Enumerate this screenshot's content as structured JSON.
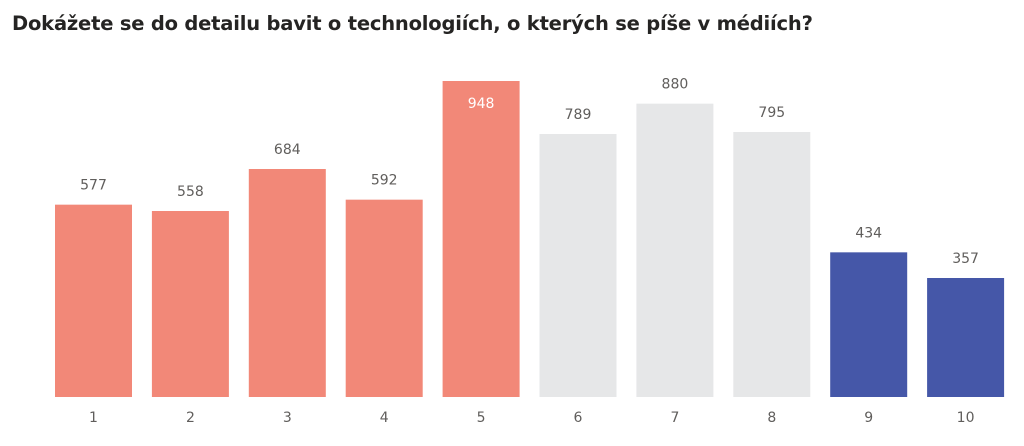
{
  "chart_data": {
    "type": "bar",
    "title": "Dokážete se do detailu bavit o technologiích, o kterých se píše v médiích?",
    "categories": [
      "1",
      "2",
      "3",
      "4",
      "5",
      "6",
      "7",
      "8",
      "9",
      "10"
    ],
    "values": [
      577,
      558,
      684,
      592,
      948,
      789,
      880,
      795,
      434,
      357
    ],
    "colors": [
      "#F28878",
      "#F28878",
      "#F28878",
      "#F28878",
      "#F28878",
      "#E6E7E8",
      "#E6E7E8",
      "#E6E7E8",
      "#4557A8",
      "#4557A8"
    ],
    "label_inside": [
      false,
      false,
      false,
      false,
      true,
      false,
      false,
      false,
      false,
      false
    ],
    "xlabel": "",
    "ylabel": "",
    "ylim": [
      0,
      948
    ],
    "grid": false
  }
}
